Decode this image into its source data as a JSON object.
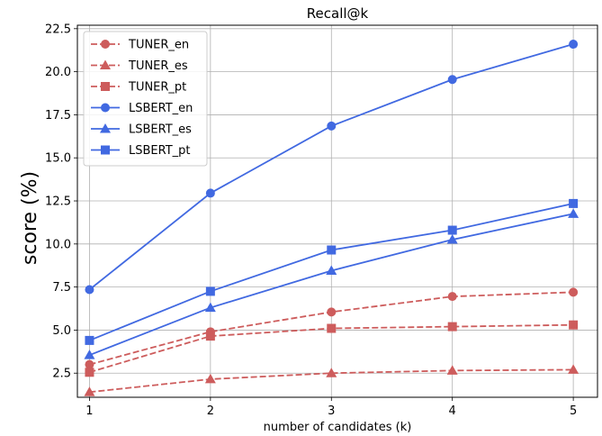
{
  "chart_data": {
    "type": "line",
    "title": "Recall@k",
    "xlabel": "number of candidates (k)",
    "ylabel": "score (%)",
    "x": [
      1,
      2,
      3,
      4,
      5
    ],
    "xticks": [
      "1",
      "2",
      "3",
      "4",
      "5"
    ],
    "xlim": [
      0.9,
      5.2
    ],
    "ylim": [
      1.1,
      22.7
    ],
    "yticks": [
      "2.5",
      "5.0",
      "7.5",
      "10.0",
      "12.5",
      "15.0",
      "17.5",
      "20.0",
      "22.5"
    ],
    "ytick_values": [
      2.5,
      5.0,
      7.5,
      10.0,
      12.5,
      15.0,
      17.5,
      20.0,
      22.5
    ],
    "grid": true,
    "legend_position": "top-left",
    "series": [
      {
        "name": "TUNER_en",
        "values": [
          3.0,
          4.9,
          6.05,
          6.95,
          7.2
        ],
        "color": "#cd5c5c",
        "marker": "circle",
        "dashed": true
      },
      {
        "name": "TUNER_es",
        "values": [
          1.4,
          2.15,
          2.5,
          2.65,
          2.7
        ],
        "color": "#cd5c5c",
        "marker": "triangle",
        "dashed": true
      },
      {
        "name": "TUNER_pt",
        "values": [
          2.55,
          4.65,
          5.1,
          5.2,
          5.3
        ],
        "color": "#cd5c5c",
        "marker": "square",
        "dashed": true
      },
      {
        "name": "LSBERT_en",
        "values": [
          7.35,
          12.95,
          16.85,
          19.55,
          21.6
        ],
        "color": "#4169e1",
        "marker": "circle",
        "dashed": false
      },
      {
        "name": "LSBERT_es",
        "values": [
          3.55,
          6.3,
          8.45,
          10.25,
          11.75
        ],
        "color": "#4169e1",
        "marker": "triangle",
        "dashed": false
      },
      {
        "name": "LSBERT_pt",
        "values": [
          4.4,
          7.25,
          9.65,
          10.8,
          12.35
        ],
        "color": "#4169e1",
        "marker": "square",
        "dashed": false
      }
    ]
  }
}
